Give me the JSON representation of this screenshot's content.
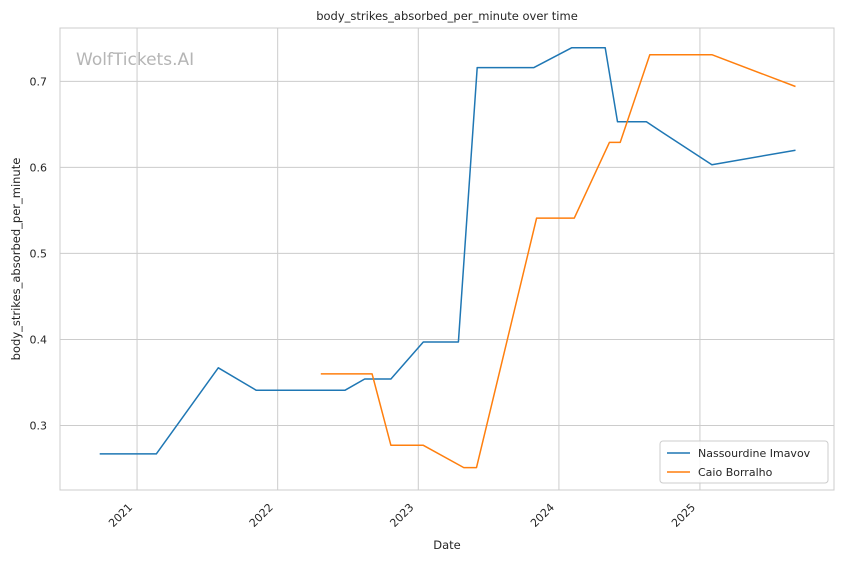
{
  "watermark": "WolfTickets.AI",
  "chart_data": {
    "type": "line",
    "title": "body_strikes_absorbed_per_minute over time",
    "xlabel": "Date",
    "ylabel": "body_strikes_absorbed_per_minute",
    "xlim": [
      "2020-06-15",
      "2025-12-15"
    ],
    "ylim": [
      0.225,
      0.762
    ],
    "x_ticks": [
      "2021-01-01",
      "2022-01-01",
      "2023-01-01",
      "2024-01-01",
      "2025-01-01"
    ],
    "x_tick_labels": [
      "2021",
      "2022",
      "2023",
      "2024",
      "2025"
    ],
    "y_ticks": [
      0.3,
      0.4,
      0.5,
      0.6,
      0.7
    ],
    "y_tick_labels": [
      "0.3",
      "0.4",
      "0.5",
      "0.6",
      "0.7"
    ],
    "grid": true,
    "legend_position": "bottom-right",
    "series": [
      {
        "name": "Nassourdine Imavov",
        "color": "#1f77b4",
        "points": [
          [
            "2020-09-26",
            0.267
          ],
          [
            "2021-02-20",
            0.267
          ],
          [
            "2021-07-31",
            0.367
          ],
          [
            "2021-11-06",
            0.341
          ],
          [
            "2022-06-25",
            0.341
          ],
          [
            "2022-08-15",
            0.354
          ],
          [
            "2022-10-22",
            0.354
          ],
          [
            "2023-01-14",
            0.397
          ],
          [
            "2023-04-15",
            0.397
          ],
          [
            "2023-06-03",
            0.716
          ],
          [
            "2023-10-28",
            0.716
          ],
          [
            "2024-02-03",
            0.739
          ],
          [
            "2024-04-30",
            0.739
          ],
          [
            "2024-06-01",
            0.653
          ],
          [
            "2024-08-15",
            0.653
          ],
          [
            "2024-09-28",
            0.64
          ],
          [
            "2025-02-01",
            0.603
          ],
          [
            "2025-09-06",
            0.62
          ]
        ]
      },
      {
        "name": "Caio Borralho",
        "color": "#ff7f0e",
        "points": [
          [
            "2022-04-23",
            0.36
          ],
          [
            "2022-09-03",
            0.36
          ],
          [
            "2022-10-22",
            0.277
          ],
          [
            "2023-01-14",
            0.277
          ],
          [
            "2023-04-29",
            0.251
          ],
          [
            "2023-06-01",
            0.251
          ],
          [
            "2023-11-04",
            0.541
          ],
          [
            "2024-02-10",
            0.541
          ],
          [
            "2024-05-11",
            0.629
          ],
          [
            "2024-06-08",
            0.629
          ],
          [
            "2024-08-24",
            0.731
          ],
          [
            "2025-02-01",
            0.731
          ],
          [
            "2025-09-06",
            0.694
          ]
        ]
      }
    ]
  }
}
